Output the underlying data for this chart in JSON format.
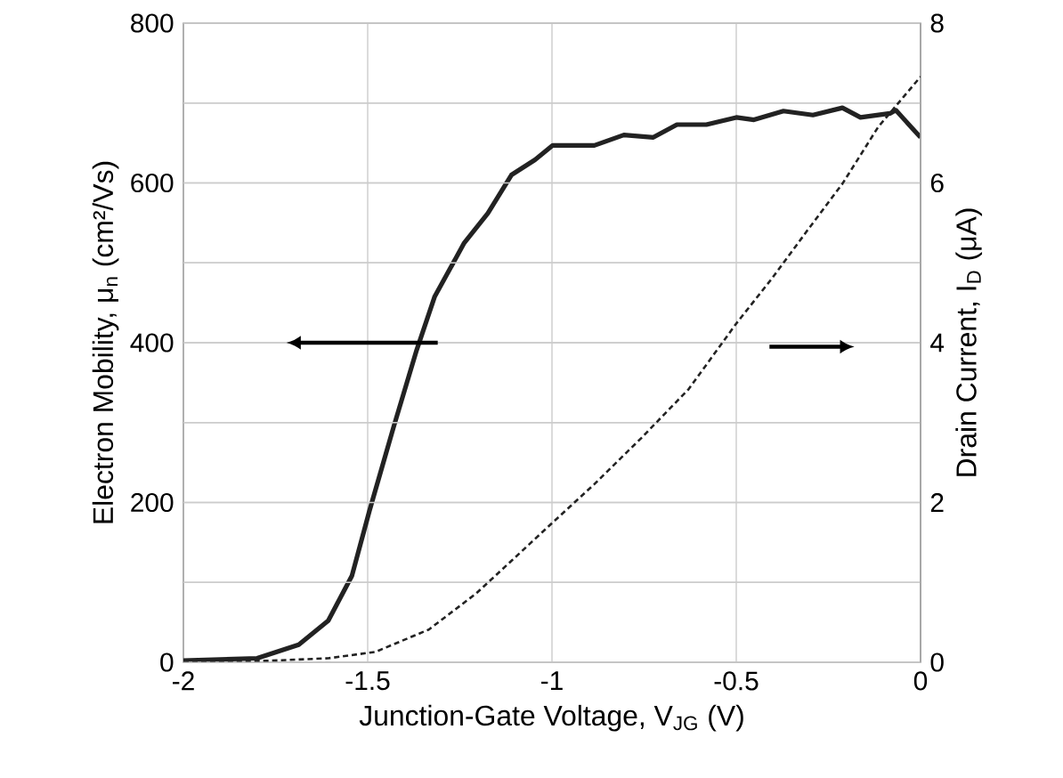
{
  "chart_data": {
    "type": "line",
    "xlabel": "Junction-Gate Voltage, V$_{JG}$ (V)",
    "ylabel": "Electron Mobility, μ$_{n}$ (cm²/Vs)",
    "y2label": "Drain Current, I$_{D}$ (μA)",
    "xlim": [
      -2,
      0
    ],
    "xticks": [
      -2,
      -1.5,
      -1,
      -0.5,
      0
    ],
    "ylim": [
      0,
      800
    ],
    "yticks": [
      0,
      {
        "value": 100,
        "label": null
      },
      200,
      {
        "value": 300,
        "label": null
      },
      400,
      {
        "value": 500,
        "label": null
      },
      600,
      {
        "value": 700,
        "label": null
      },
      800
    ],
    "y2lim": [
      0,
      8
    ],
    "y2ticks": [
      0,
      {
        "value": 1,
        "label": null
      },
      2,
      {
        "value": 3,
        "label": null
      },
      4,
      {
        "value": 5,
        "label": null
      },
      6,
      {
        "value": 7,
        "label": null
      },
      8
    ],
    "grid": true,
    "series": [
      {
        "color": "#222222",
        "line_style": "solid",
        "x": [
          -2,
          -1.8,
          -1.687,
          -1.607,
          -1.543,
          -1.495,
          -1.43,
          -1.367,
          -1.318,
          -1.238,
          -1.174,
          -1.11,
          -1.046,
          -0.998,
          -0.885,
          -0.805,
          -0.725,
          -0.661,
          -0.581,
          -0.5,
          -0.452,
          -0.372,
          -0.292,
          -0.212,
          -0.163,
          -0.083,
          -0.067,
          0
        ],
        "values": [
          2,
          5,
          22,
          52,
          108,
          190,
          294,
          391,
          458,
          525,
          562,
          610,
          629,
          647,
          647,
          660,
          657,
          673,
          673,
          682,
          679,
          690,
          685,
          694,
          682,
          687,
          691,
          657
        ]
      },
      {
        "color": "#222222",
        "line_style": "dashed",
        "axis": "y2",
        "x": [
          -2,
          -1.767,
          -1.607,
          -1.479,
          -1.334,
          -1.206,
          -1.11,
          -0.998,
          -0.885,
          -0.757,
          -0.629,
          -0.5,
          -0.404,
          -0.308,
          -0.212,
          -0.115,
          0
        ],
        "values": [
          0.02,
          0.02,
          0.05,
          0.13,
          0.41,
          0.86,
          1.27,
          1.75,
          2.23,
          2.81,
          3.42,
          4.24,
          4.8,
          5.4,
          5.99,
          6.7,
          7.33
        ]
      }
    ]
  }
}
